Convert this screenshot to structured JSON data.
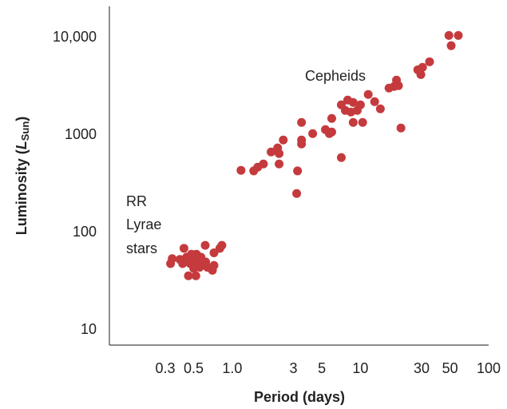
{
  "chart_data": {
    "type": "scatter",
    "x_label": "Period (days)",
    "y_label": {
      "text": "Luminosity (",
      "symbol": "L",
      "subscript": "Sun",
      "close": ")"
    },
    "annotations": [
      {
        "lines": [
          "Cepheids"
        ]
      },
      {
        "lines": [
          "RR",
          "Lyrae",
          "stars"
        ]
      }
    ],
    "x_scale": "log",
    "y_scale": "log",
    "xlim": [
      0.11,
      100
    ],
    "ylim": [
      7,
      21000
    ],
    "xticks": [
      0.3,
      0.5,
      {
        "value": 1,
        "label": "1.0"
      },
      3,
      5,
      10,
      30,
      50,
      100
    ],
    "yticks": [
      10,
      100,
      1000,
      {
        "value": 10000,
        "label": "10,000"
      }
    ],
    "color": "#c53a3d",
    "x": [
      0.33,
      0.34,
      0.41,
      0.42,
      0.44,
      0.455,
      0.47,
      0.48,
      0.5,
      0.52,
      0.525,
      0.54,
      0.556,
      0.57,
      0.59,
      0.615,
      0.62,
      0.64,
      0.7,
      0.72,
      0.72,
      0.8,
      0.83,
      0.39,
      0.5,
      1.17,
      1.47,
      1.58,
      1.75,
      2.01,
      2.26,
      2.32,
      2.32,
      2.5,
      3.18,
      3.23,
      3.47,
      3.47,
      3.47,
      4.24,
      5.33,
      5.72,
      5.97,
      5.97,
      7.09,
      7.09,
      7.62,
      7.95,
      8.42,
      8.78,
      8.78,
      9.44,
      10,
      10.4,
      11.5,
      12.9,
      14.3,
      16.7,
      18.3,
      19.1,
      19.8,
      20.7,
      28,
      29.6,
      30.5,
      34.6,
      49,
      51,
      58
    ],
    "values": [
      48,
      54,
      48,
      69,
      56,
      36,
      48,
      60,
      43,
      36,
      60,
      50,
      44,
      56,
      48,
      74,
      50,
      44,
      41,
      46,
      62,
      69,
      74,
      53,
      50,
      436,
      430,
      470,
      507,
      673,
      740,
      648,
      507,
      893,
      252,
      430,
      812,
      1352,
      893,
      1038,
      1141,
      1038,
      1486,
      1078,
      2049,
      589,
      1795,
      2293,
      1729,
      2167,
      1352,
      1795,
      2049,
      1352,
      2617,
      2208,
      1865,
      3045,
      3162,
      3677,
      3223,
      1185,
      4696,
      4192,
      4976,
      5672,
      10560,
      8297,
      10560
    ]
  }
}
